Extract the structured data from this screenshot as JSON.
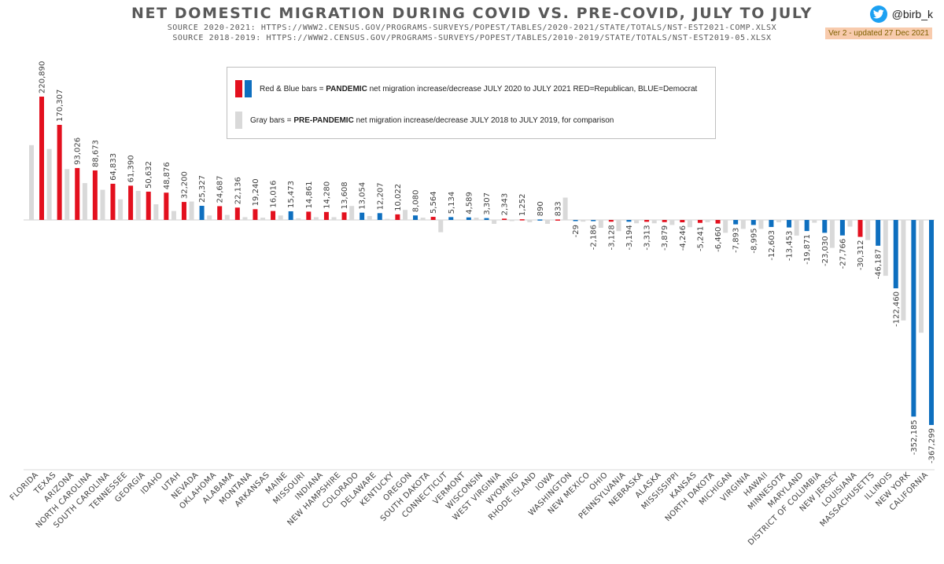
{
  "header": {
    "title": "NET DOMESTIC MIGRATION DURING COVID VS. PRE-COVID, JULY TO JULY",
    "source1": "SOURCE 2020-2021: HTTPS://WWW2.CENSUS.GOV/PROGRAMS-SURVEYS/POPEST/TABLES/2020-2021/STATE/TOTALS/NST-EST2021-COMP.XLSX",
    "source2": "SOURCE 2018-2019: HTTPS://WWW2.CENSUS.GOV/PROGRAMS-SURVEYS/POPEST/TABLES/2010-2019/STATE/TOTALS/NST-EST2019-05.XLSX",
    "handle": "@birb_k",
    "version": "Ver 2 - updated 27 Dec 2021"
  },
  "legend": {
    "row1_prefix": "Red & Blue bars = ",
    "row1_bold": "PANDEMIC",
    "row1_suffix": " net migration increase/decrease  JULY 2020 to JULY 2021 RED=Republican, BLUE=Democrat",
    "row2_prefix": "Gray bars = ",
    "row2_bold": "PRE-PANDEMIC",
    "row2_suffix": " net migration increase/decrease JULY 2018 to JULY 2019, for comparison"
  },
  "colors": {
    "red": "#e3101e",
    "blue": "#0e6fbf",
    "gray": "#d9d9d9",
    "label": "#404040",
    "version_bg": "#f8cbad"
  },
  "chart_data": {
    "type": "bar",
    "title": "NET DOMESTIC MIGRATION DURING COVID VS. PRE-COVID, JULY TO JULY",
    "ylim": [
      -370000,
      225000
    ],
    "grid": false,
    "categories": [
      "FLORIDA",
      "TEXAS",
      "ARIZONA",
      "NORTH CAROLINA",
      "SOUTH CAROLINA",
      "TENNESSEE",
      "GEORGIA",
      "IDAHO",
      "UTAH",
      "NEVADA",
      "OKLAHOMA",
      "ALABAMA",
      "MONTANA",
      "ARKANSAS",
      "MAINE",
      "MISSOURI",
      "INDIANA",
      "NEW HAMPSHIRE",
      "COLORADO",
      "DELAWARE",
      "KENTUCKY",
      "OREGON",
      "SOUTH DAKOTA",
      "CONNECTICUT",
      "VERMONT",
      "WISCONSIN",
      "WEST VIRGINIA",
      "WYOMING",
      "RHODE ISLAND",
      "IOWA",
      "WASHINGTON",
      "NEW MEXICO",
      "OHIO",
      "PENNSYLVANIA",
      "NEBRASKA",
      "ALASKA",
      "MISSISSIPPI",
      "KANSAS",
      "NORTH DAKOTA",
      "MICHIGAN",
      "VIRGINIA",
      "HAWAII",
      "MINNESOTA",
      "MARYLAND",
      "DISTRICT OF COLUMBIA",
      "NEW JERSEY",
      "LOUISIANA",
      "MASSACHUSETTS",
      "ILLINOIS",
      "NEW YORK",
      "CALIFORNIA"
    ],
    "series": [
      {
        "name": "Pandemic (July 2020 to July 2021)",
        "values": [
          220890,
          170307,
          93026,
          88673,
          64833,
          61390,
          50632,
          48876,
          32200,
          25327,
          24687,
          22136,
          19240,
          16016,
          15473,
          14861,
          14280,
          13608,
          13054,
          12207,
          10022,
          8080,
          5564,
          5134,
          4589,
          3307,
          2343,
          1252,
          890,
          833,
          -29,
          -2186,
          -3128,
          -3194,
          -3313,
          -3879,
          -4246,
          -5241,
          -6460,
          -7893,
          -8995,
          -12603,
          -13453,
          -19871,
          -23030,
          -27766,
          -30312,
          -46187,
          -122460,
          -352185,
          -367299
        ],
        "labels": [
          "220,890",
          "170,307",
          "93,026",
          "88,673",
          "64,833",
          "61,390",
          "50,632",
          "48,876",
          "32,200",
          "25,327",
          "24,687",
          "22,136",
          "19,240",
          "16,016",
          "15,473",
          "14,861",
          "14,280",
          "13,608",
          "13,054",
          "12,207",
          "10,022",
          "8,080",
          "5,564",
          "5,134",
          "4,589",
          "3,307",
          "2,343",
          "1,252",
          "890",
          "833",
          "-29",
          "-2,186",
          "-3,128",
          "-3,194",
          "-3,313",
          "-3,879",
          "-4,246",
          "-5,241",
          "-6,460",
          "-7,893",
          "-8,995",
          "-12,603",
          "-13,453",
          "-19,871",
          "-23,030",
          "-27,766",
          "-30,312",
          "-46,187",
          "-122,460",
          "-352,185",
          "-367,299"
        ],
        "party": [
          "R",
          "R",
          "R",
          "R",
          "R",
          "R",
          "R",
          "R",
          "R",
          "D",
          "R",
          "R",
          "R",
          "R",
          "D",
          "R",
          "R",
          "R",
          "D",
          "D",
          "R",
          "D",
          "R",
          "D",
          "D",
          "D",
          "R",
          "R",
          "D",
          "R",
          "D",
          "D",
          "R",
          "D",
          "R",
          "R",
          "R",
          "R",
          "R",
          "D",
          "D",
          "D",
          "D",
          "D",
          "D",
          "D",
          "R",
          "D",
          "D",
          "D",
          "D"
        ]
      },
      {
        "name": "Pre-pandemic (July 2018 to July 2019)",
        "values": [
          134000,
          127000,
          91000,
          66000,
          54000,
          37000,
          52000,
          28000,
          16000,
          33000,
          8000,
          9000,
          5000,
          4000,
          8000,
          3000,
          5000,
          5000,
          25000,
          7000,
          2000,
          18000,
          4000,
          -22000,
          1000,
          4000,
          -7000,
          -2000,
          -4000,
          -7000,
          40000,
          -3000,
          -14000,
          -20000,
          -6000,
          -6000,
          -9000,
          -13000,
          -4000,
          -23000,
          -16000,
          -16000,
          -4000,
          -28000,
          -5000,
          -50000,
          -12000,
          -36000,
          -100000,
          -180000,
          -202000
        ]
      }
    ]
  }
}
